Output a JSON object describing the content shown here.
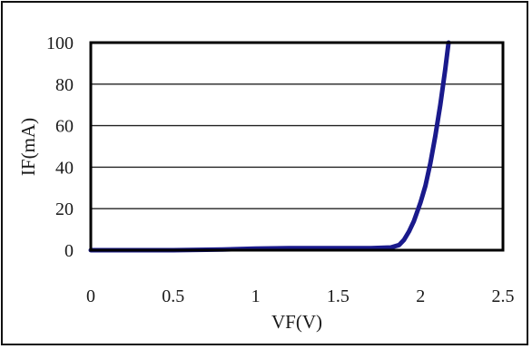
{
  "chart_data": {
    "type": "line",
    "title": "",
    "xlabel": "VF(V)",
    "ylabel": "IF(mA)",
    "xlim": [
      0,
      2.5
    ],
    "ylim": [
      0,
      100
    ],
    "x_ticks": [
      "0",
      "0.5",
      "1",
      "1.5",
      "2",
      "2.5"
    ],
    "y_ticks": [
      "0",
      "20",
      "40",
      "60",
      "80",
      "100"
    ],
    "grid": "horizontal",
    "legend": "none",
    "series": [
      {
        "color": "#1a1a8c",
        "points": [
          [
            0,
            0
          ],
          [
            0.5,
            0
          ],
          [
            0.8,
            0.3
          ],
          [
            1.0,
            0.8
          ],
          [
            1.2,
            1.0
          ],
          [
            1.5,
            1.0
          ],
          [
            1.7,
            1.0
          ],
          [
            1.82,
            1.3
          ],
          [
            1.87,
            2.5
          ],
          [
            1.9,
            5
          ],
          [
            1.93,
            9
          ],
          [
            1.96,
            14
          ],
          [
            2.0,
            23
          ],
          [
            2.03,
            31
          ],
          [
            2.06,
            42
          ],
          [
            2.09,
            55
          ],
          [
            2.12,
            70
          ],
          [
            2.15,
            87
          ],
          [
            2.17,
            100
          ]
        ]
      }
    ]
  }
}
